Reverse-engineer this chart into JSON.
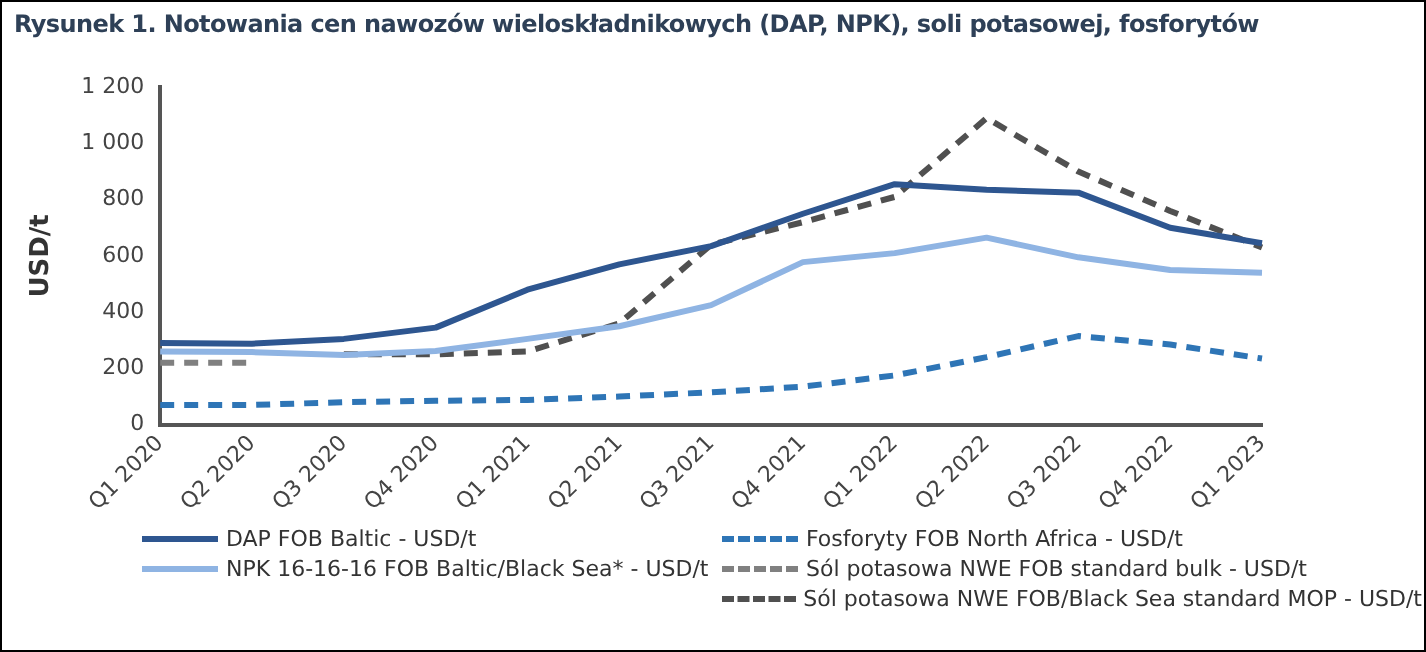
{
  "chart_data": {
    "type": "line",
    "title": "Rysunek 1. Notowania cen nawozów wieloskładnikowych (DAP, NPK), soli potasowej, fosforytów",
    "ylabel": "USD/t",
    "categories": [
      "Q1 2020",
      "Q2 2020",
      "Q3 2020",
      "Q4 2020",
      "Q1 2021",
      "Q2 2021",
      "Q3 2021",
      "Q4 2021",
      "Q1 2022",
      "Q2 2022",
      "Q3 2022",
      "Q4 2022",
      "Q1 2023"
    ],
    "ylim": [
      0,
      1200
    ],
    "yticks": [
      0,
      200,
      400,
      600,
      800,
      {
        "value": 1000,
        "label": "1 000"
      },
      {
        "value": 1200,
        "label": "1 200"
      }
    ],
    "grid": false,
    "legend": "bottom",
    "marker": "none",
    "series": [
      {
        "name": "DAP FOB Baltic - USD/t",
        "color": "#2e5690",
        "line_style": "solid",
        "values": [
          290,
          288,
          305,
          345,
          480,
          570,
          635,
          750,
          855,
          835,
          825,
          700,
          645
        ]
      },
      {
        "name": "NPK 16-16-16 FOB Baltic/Black Sea* - USD/t",
        "color": "#8fb4e3",
        "line_style": "solid",
        "values": [
          260,
          258,
          248,
          262,
          305,
          350,
          425,
          578,
          610,
          665,
          595,
          550,
          540
        ]
      },
      {
        "name": "Fosforyty FOB North Africa - USD/t",
        "color": "#2e75b6",
        "line_style": "dashed",
        "values": [
          70,
          70,
          80,
          85,
          88,
          100,
          115,
          135,
          175,
          240,
          315,
          285,
          235
        ]
      },
      {
        "name": "Sól potasowa NWE FOB standard bulk - USD/t",
        "color": "#808080",
        "line_style": "dashed",
        "values": [
          220,
          220,
          null,
          null,
          null,
          null,
          null,
          null,
          null,
          null,
          null,
          null,
          null
        ]
      },
      {
        "name": "Sól potasowa NWE FOB/Black Sea standard MOP - USD/t",
        "color": "#505050",
        "line_style": "dashed",
        "values": [
          null,
          null,
          250,
          250,
          260,
          360,
          640,
          720,
          810,
          1090,
          900,
          760,
          630
        ]
      }
    ]
  }
}
